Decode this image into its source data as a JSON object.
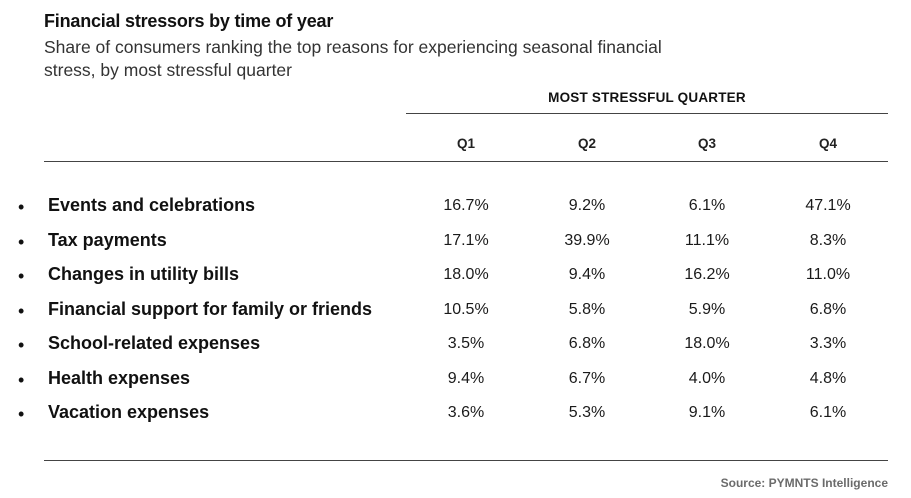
{
  "title": "Financial stressors by time of year",
  "subtitle": "Share of consumers ranking the top reasons for experiencing seasonal financial stress, by most stressful quarter",
  "group_header": "MOST STRESSFUL QUARTER",
  "source": "Source: PYMNTS Intelligence",
  "bullet_glyph": "•",
  "chart_data": {
    "type": "table",
    "columns": [
      "Q1",
      "Q2",
      "Q3",
      "Q4"
    ],
    "rows": [
      {
        "label": "Events and celebrations",
        "values": [
          "16.7%",
          "9.2%",
          "6.1%",
          "47.1%"
        ]
      },
      {
        "label": "Tax payments",
        "values": [
          "17.1%",
          "39.9%",
          "11.1%",
          "8.3%"
        ]
      },
      {
        "label": "Changes in utility bills",
        "values": [
          "18.0%",
          "9.4%",
          "16.2%",
          "11.0%"
        ]
      },
      {
        "label": "Financial support for family or friends",
        "values": [
          "10.5%",
          "5.8%",
          "5.9%",
          "6.8%"
        ]
      },
      {
        "label": "School-related expenses",
        "values": [
          "3.5%",
          "6.8%",
          "18.0%",
          "3.3%"
        ]
      },
      {
        "label": "Health expenses",
        "values": [
          "9.4%",
          "6.7%",
          "4.0%",
          "4.8%"
        ]
      },
      {
        "label": "Vacation expenses",
        "values": [
          "3.6%",
          "5.3%",
          "9.1%",
          "6.1%"
        ]
      }
    ]
  }
}
